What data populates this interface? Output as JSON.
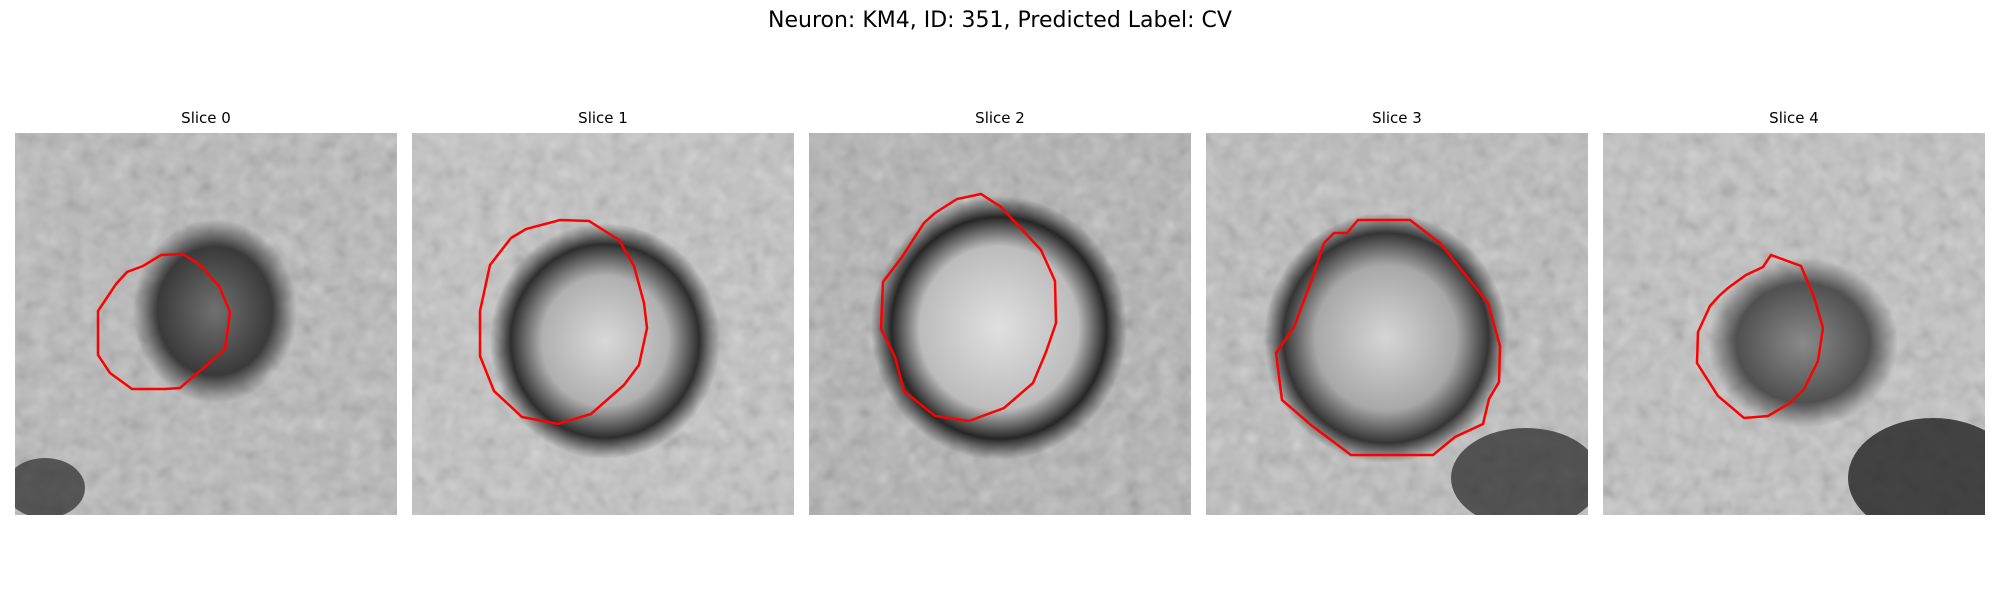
{
  "figure": {
    "title": "Neuron: KM4, ID: 351, Predicted Label: CV",
    "contour_color": "#ff0000"
  },
  "panels": [
    {
      "title": "Slice 0"
    },
    {
      "title": "Slice 1"
    },
    {
      "title": "Slice 2"
    },
    {
      "title": "Slice 3"
    },
    {
      "title": "Slice 4"
    }
  ]
}
